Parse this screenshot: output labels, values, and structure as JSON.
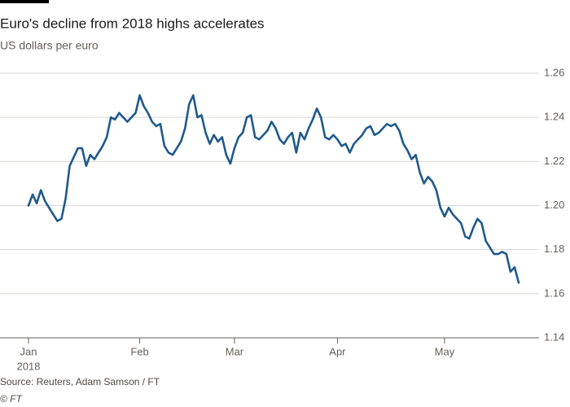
{
  "chart_data": {
    "type": "line",
    "title": "Euro's decline from 2018 highs accelerates",
    "subtitle": "US dollars per euro",
    "source": "Source: Reuters, Adam Samson / FT",
    "credit": "© FT",
    "x_year": "2018",
    "color": "#1f5a8c",
    "grid": true,
    "ylim": [
      1.14,
      1.26
    ],
    "yticks": [
      1.14,
      1.16,
      1.18,
      {
        "value": 1.2,
        "label": "1.20"
      },
      1.22,
      1.24,
      1.26
    ],
    "categories": [
      "Jan",
      null,
      null,
      null,
      null,
      null,
      null,
      null,
      null,
      null,
      null,
      null,
      null,
      null,
      null,
      null,
      null,
      null,
      null,
      null,
      null,
      null,
      null,
      null,
      null,
      null,
      null,
      "Feb",
      null,
      null,
      null,
      null,
      null,
      null,
      null,
      null,
      null,
      null,
      null,
      null,
      null,
      null,
      null,
      null,
      null,
      null,
      null,
      null,
      null,
      null,
      "Mar",
      null,
      null,
      null,
      null,
      null,
      null,
      null,
      null,
      null,
      null,
      null,
      null,
      null,
      null,
      null,
      null,
      null,
      null,
      null,
      null,
      null,
      null,
      null,
      null,
      "Apr",
      null,
      null,
      null,
      null,
      null,
      null,
      null,
      null,
      null,
      null,
      null,
      null,
      null,
      null,
      null,
      null,
      null,
      null,
      null,
      null,
      null,
      null,
      null,
      null,
      null,
      "May",
      null,
      null,
      null,
      null,
      null,
      null,
      null,
      null,
      null,
      null,
      null,
      null,
      null,
      null,
      null,
      null,
      null,
      null
    ],
    "values": [
      1.2,
      1.205,
      1.201,
      1.207,
      1.202,
      1.199,
      1.196,
      1.193,
      1.194,
      1.203,
      1.218,
      1.222,
      1.226,
      1.226,
      1.218,
      1.223,
      1.221,
      1.224,
      1.227,
      1.231,
      1.24,
      1.239,
      1.242,
      1.24,
      1.238,
      1.24,
      1.242,
      1.25,
      1.245,
      1.242,
      1.238,
      1.236,
      1.237,
      1.227,
      1.224,
      1.223,
      1.226,
      1.229,
      1.235,
      1.246,
      1.25,
      1.24,
      1.241,
      1.233,
      1.228,
      1.232,
      1.229,
      1.231,
      1.223,
      1.219,
      1.226,
      1.231,
      1.233,
      1.24,
      1.241,
      1.231,
      1.23,
      1.232,
      1.234,
      1.238,
      1.235,
      1.23,
      1.228,
      1.231,
      1.233,
      1.224,
      1.233,
      1.23,
      1.235,
      1.239,
      1.244,
      1.24,
      1.231,
      1.23,
      1.232,
      1.23,
      1.227,
      1.228,
      1.224,
      1.228,
      1.23,
      1.232,
      1.235,
      1.236,
      1.232,
      1.233,
      1.235,
      1.237,
      1.236,
      1.237,
      1.234,
      1.228,
      1.225,
      1.221,
      1.223,
      1.215,
      1.21,
      1.213,
      1.211,
      1.207,
      1.199,
      1.195,
      1.199,
      1.196,
      1.194,
      1.192,
      1.186,
      1.185,
      1.19,
      1.194,
      1.192,
      1.184,
      1.181,
      1.178,
      1.178,
      1.179,
      1.178,
      1.17,
      1.172,
      1.165
    ]
  }
}
